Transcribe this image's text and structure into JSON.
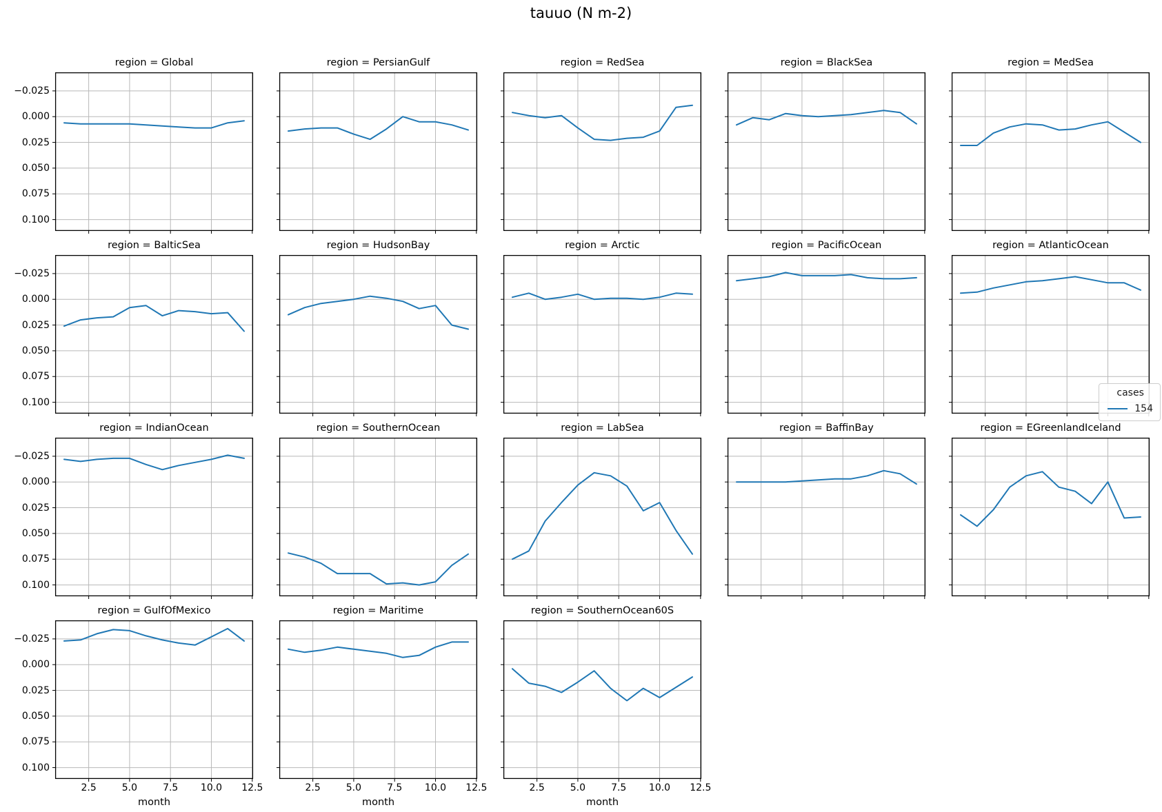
{
  "figure": {
    "title": "tauuo (N m-2)",
    "xlabel": "month",
    "facet_prefix": "region = "
  },
  "axes": {
    "xlim": [
      0.45,
      12.55
    ],
    "ytop": -0.043,
    "ybottom": 0.111,
    "x_tick_values": [
      2.5,
      5.0,
      7.5,
      10.0,
      12.5
    ],
    "x_ticks": [
      "2.5",
      "5.0",
      "7.5",
      "10.0",
      "12.5"
    ],
    "y_tick_values": [
      -0.025,
      0.0,
      0.025,
      0.05,
      0.075,
      0.1
    ],
    "y_ticks": [
      "−0.025",
      "0.000",
      "0.025",
      "0.050",
      "0.075",
      "0.100"
    ],
    "grid": true,
    "grid_color": "#b8b8b8",
    "spine_color": "#000000",
    "line_color": "#1f77b4"
  },
  "legend": {
    "title": "cases",
    "entries": [
      {
        "label": "154",
        "color": "#1f77b4"
      }
    ],
    "position": "right"
  },
  "chart_data": {
    "type": "line",
    "title": "tauuo (N m-2)",
    "xlabel": "month",
    "ylabel": "",
    "y_inverted": true,
    "ylim": [
      0.111,
      -0.043
    ],
    "facet_field": "region",
    "series_field": "cases",
    "series": [
      {
        "name": "154",
        "color": "#1f77b4"
      }
    ],
    "x": [
      1,
      2,
      3,
      4,
      5,
      6,
      7,
      8,
      9,
      10,
      11,
      12
    ],
    "facets": [
      {
        "region": "Global",
        "title": "region = Global",
        "show_y": true,
        "show_x": false,
        "values": [
          0.006,
          0.007,
          0.007,
          0.007,
          0.007,
          0.008,
          0.009,
          0.01,
          0.011,
          0.011,
          0.006,
          0.004
        ]
      },
      {
        "region": "PersianGulf",
        "title": "region = PersianGulf",
        "show_y": false,
        "show_x": false,
        "values": [
          0.014,
          0.012,
          0.011,
          0.011,
          0.017,
          0.022,
          0.012,
          0.0,
          0.005,
          0.005,
          0.008,
          0.013
        ]
      },
      {
        "region": "RedSea",
        "title": "region = RedSea",
        "show_y": false,
        "show_x": false,
        "values": [
          -0.004,
          -0.001,
          0.001,
          -0.001,
          0.011,
          0.022,
          0.023,
          0.021,
          0.02,
          0.014,
          -0.009,
          -0.011
        ]
      },
      {
        "region": "BlackSea",
        "title": "region = BlackSea",
        "show_y": false,
        "show_x": false,
        "values": [
          0.008,
          0.001,
          0.003,
          -0.003,
          -0.001,
          0.0,
          -0.001,
          -0.002,
          -0.004,
          -0.006,
          -0.004,
          0.007
        ]
      },
      {
        "region": "MedSea",
        "title": "region = MedSea",
        "show_y": false,
        "show_x": false,
        "values": [
          0.028,
          0.028,
          0.016,
          0.01,
          0.007,
          0.008,
          0.013,
          0.012,
          0.008,
          0.005,
          0.015,
          0.025
        ]
      },
      {
        "region": "BalticSea",
        "title": "region = BalticSea",
        "show_y": true,
        "show_x": false,
        "values": [
          0.026,
          0.02,
          0.018,
          0.017,
          0.008,
          0.006,
          0.016,
          0.011,
          0.012,
          0.014,
          0.013,
          0.031
        ]
      },
      {
        "region": "HudsonBay",
        "title": "region = HudsonBay",
        "show_y": false,
        "show_x": false,
        "values": [
          0.015,
          0.008,
          0.004,
          0.002,
          0.0,
          -0.003,
          -0.001,
          0.002,
          0.009,
          0.006,
          0.025,
          0.029
        ]
      },
      {
        "region": "Arctic",
        "title": "region = Arctic",
        "show_y": false,
        "show_x": false,
        "values": [
          -0.002,
          -0.006,
          0.0,
          -0.002,
          -0.005,
          0.0,
          -0.001,
          -0.001,
          0.0,
          -0.002,
          -0.006,
          -0.005
        ]
      },
      {
        "region": "PacificOcean",
        "title": "region = PacificOcean",
        "show_y": false,
        "show_x": false,
        "values": [
          -0.018,
          -0.02,
          -0.022,
          -0.026,
          -0.023,
          -0.023,
          -0.023,
          -0.024,
          -0.021,
          -0.02,
          -0.02,
          -0.021
        ]
      },
      {
        "region": "AtlanticOcean",
        "title": "region = AtlanticOcean",
        "show_y": false,
        "show_x": false,
        "values": [
          -0.006,
          -0.007,
          -0.011,
          -0.014,
          -0.017,
          -0.018,
          -0.02,
          -0.022,
          -0.019,
          -0.016,
          -0.016,
          -0.009
        ]
      },
      {
        "region": "IndianOcean",
        "title": "region = IndianOcean",
        "show_y": true,
        "show_x": false,
        "values": [
          -0.022,
          -0.02,
          -0.022,
          -0.023,
          -0.023,
          -0.017,
          -0.012,
          -0.016,
          -0.019,
          -0.022,
          -0.026,
          -0.023
        ]
      },
      {
        "region": "SouthernOcean",
        "title": "region = SouthernOcean",
        "show_y": false,
        "show_x": false,
        "values": [
          0.069,
          0.073,
          0.079,
          0.089,
          0.089,
          0.089,
          0.099,
          0.098,
          0.1,
          0.097,
          0.081,
          0.07
        ]
      },
      {
        "region": "LabSea",
        "title": "region = LabSea",
        "show_y": false,
        "show_x": false,
        "values": [
          0.075,
          0.067,
          0.038,
          0.02,
          0.003,
          -0.009,
          -0.006,
          0.004,
          0.028,
          0.02,
          0.047,
          0.07
        ]
      },
      {
        "region": "BaffinBay",
        "title": "region = BaffinBay",
        "show_y": false,
        "show_x": false,
        "values": [
          0.0,
          0.0,
          0.0,
          0.0,
          -0.001,
          -0.002,
          -0.003,
          -0.003,
          -0.006,
          -0.011,
          -0.008,
          0.002
        ]
      },
      {
        "region": "EGreenlandIceland",
        "title": "region = EGreenlandIceland",
        "show_y": false,
        "show_x": false,
        "values": [
          0.032,
          0.043,
          0.027,
          0.005,
          -0.006,
          -0.01,
          0.005,
          0.009,
          0.021,
          0.0,
          0.035,
          0.034
        ]
      },
      {
        "region": "GulfOfMexico",
        "title": "region = GulfOfMexico",
        "show_y": true,
        "show_x": true,
        "values": [
          -0.023,
          -0.024,
          -0.03,
          -0.034,
          -0.033,
          -0.028,
          -0.024,
          -0.021,
          -0.019,
          -0.027,
          -0.035,
          -0.023
        ]
      },
      {
        "region": "Maritime",
        "title": "region = Maritime",
        "show_y": false,
        "show_x": true,
        "values": [
          -0.015,
          -0.012,
          -0.014,
          -0.017,
          -0.015,
          -0.013,
          -0.011,
          -0.007,
          -0.009,
          -0.017,
          -0.022,
          -0.022
        ]
      },
      {
        "region": "SouthernOcean60S",
        "title": "region = SouthernOcean60S",
        "show_y": false,
        "show_x": true,
        "values": [
          0.004,
          0.018,
          0.021,
          0.027,
          0.017,
          0.006,
          0.023,
          0.035,
          0.023,
          0.032,
          0.022,
          0.012
        ]
      }
    ]
  }
}
